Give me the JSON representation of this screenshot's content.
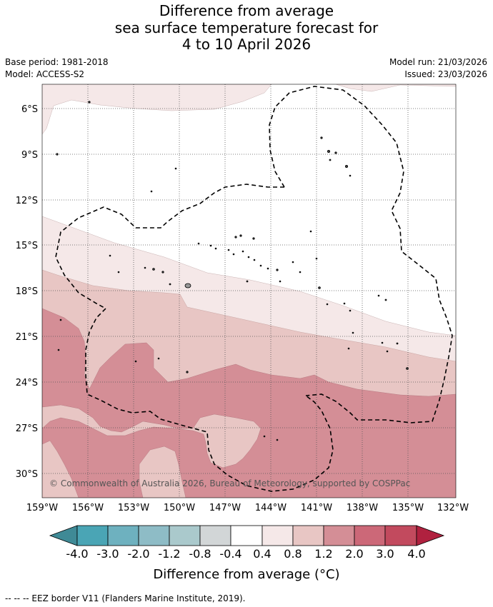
{
  "title": {
    "line1": "Difference from average",
    "line2": "sea surface temperature forecast for",
    "line3": "4 to 10 April 2026"
  },
  "meta": {
    "base_period": "Base period: 1981-2018",
    "model": "Model: ACCESS-S2",
    "model_run": "Model run: 21/03/2026",
    "issued": "Issued: 23/03/2026"
  },
  "map": {
    "copyright": "© Commonwealth of Australia 2026, Bureau of Meteorology, supported by COSPPac",
    "lon_labels": [
      "159°W",
      "156°W",
      "153°W",
      "150°W",
      "147°W",
      "144°W",
      "141°W",
      "138°W",
      "135°W",
      "132°W"
    ],
    "lat_labels": [
      "6°S",
      "9°S",
      "12°S",
      "15°S",
      "18°S",
      "21°S",
      "24°S",
      "27°S",
      "30°S"
    ],
    "colors": {
      "band_0_4_0_8": "#f5e8e8",
      "band_0_8_1_2": "#e8c6c4",
      "band_1_2_2_0": "#d48e96",
      "land": "#7a7a7a"
    }
  },
  "colorbar": {
    "tick_labels": [
      "-4.0",
      "-3.0",
      "-2.0",
      "-1.2",
      "-0.8",
      "-0.4",
      "0.4",
      "0.8",
      "1.2",
      "2.0",
      "3.0",
      "4.0"
    ],
    "colors": [
      "#3f8a96",
      "#4aa5b5",
      "#6eb1bf",
      "#8ebcc6",
      "#aac9cc",
      "#d2d6d7",
      "#ffffff",
      "#f5e8e8",
      "#e8c6c4",
      "#d48e96",
      "#cc6878",
      "#c24a5e",
      "#b0213f"
    ],
    "title": "Difference from average (°C)"
  },
  "footnote": "-- -- -- EEZ border V11 (Flanders Marine Institute, 2019)."
}
